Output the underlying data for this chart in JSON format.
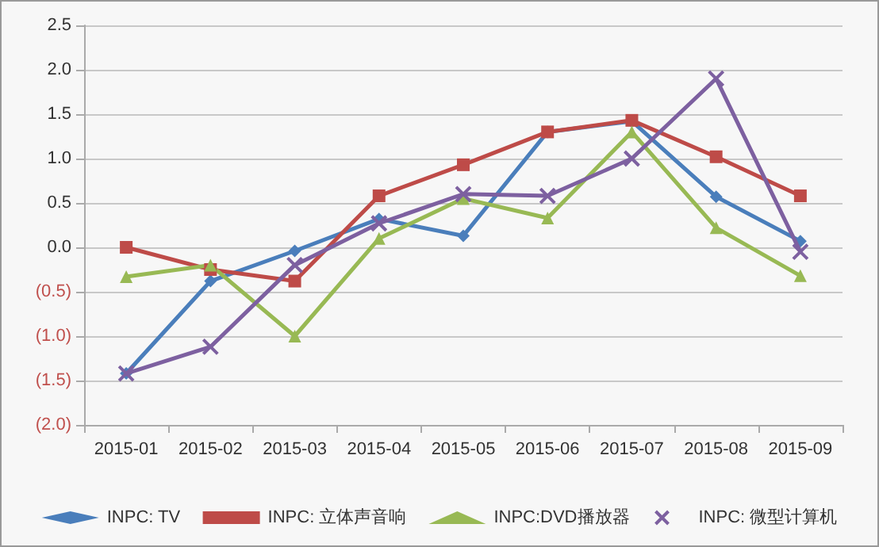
{
  "chart_data": {
    "type": "line",
    "categories": [
      "2015-01",
      "2015-02",
      "2015-03",
      "2015-04",
      "2015-05",
      "2015-06",
      "2015-07",
      "2015-08",
      "2015-09"
    ],
    "series": [
      {
        "name": "INPC: TV",
        "color": "#4a7ebb",
        "marker": "diamond",
        "values": [
          -1.42,
          -0.38,
          -0.04,
          0.32,
          0.13,
          1.3,
          1.42,
          0.57,
          0.07
        ]
      },
      {
        "name": "INPC: 立体声音响",
        "color": "#be4b48",
        "marker": "square",
        "values": [
          0.0,
          -0.25,
          -0.38,
          0.58,
          0.93,
          1.3,
          1.43,
          1.02,
          0.58
        ]
      },
      {
        "name": "INPC:DVD播放器",
        "color": "#98b954",
        "marker": "triangle",
        "values": [
          -0.33,
          -0.2,
          -1.0,
          0.1,
          0.55,
          0.33,
          1.3,
          0.22,
          -0.32
        ]
      },
      {
        "name": "INPC: 微型计算机",
        "color": "#7d60a0",
        "marker": "cross",
        "values": [
          -1.42,
          -1.12,
          -0.2,
          0.27,
          0.6,
          0.58,
          1.0,
          1.9,
          -0.05
        ]
      }
    ],
    "ylim": [
      -2.0,
      2.5
    ],
    "yticks": [
      {
        "value": -2.0,
        "label": "(2.0)"
      },
      {
        "value": -1.5,
        "label": "(1.5)"
      },
      {
        "value": -1.0,
        "label": "(1.0)"
      },
      {
        "value": -0.5,
        "label": "(0.5)"
      },
      {
        "value": 0,
        "label": "0.0"
      },
      {
        "value": 0.5,
        "label": "0.5"
      },
      {
        "value": 1.0,
        "label": "1.0"
      },
      {
        "value": 1.5,
        "label": "1.5"
      },
      {
        "value": 2.0,
        "label": "2.0"
      },
      {
        "value": 2.5,
        "label": "2.5"
      }
    ],
    "grid": "y",
    "legend": "bottom"
  }
}
